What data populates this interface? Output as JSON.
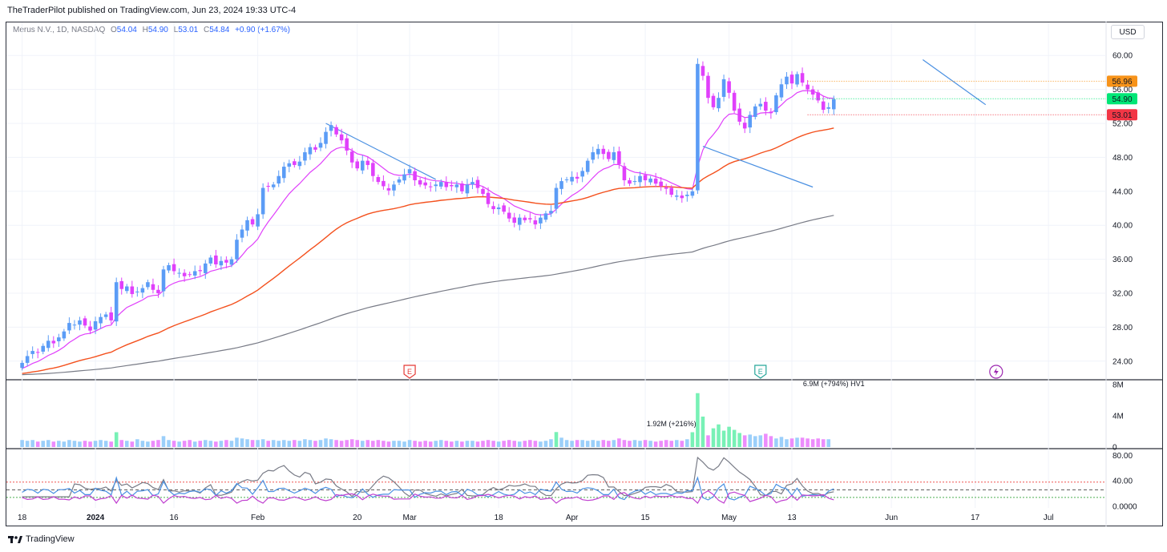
{
  "header": {
    "published": "TheTraderPilot published on TradingView.com, Jun 23, 2024 19:33 UTC-4"
  },
  "legend": {
    "symbol": "Merus N.V., 1D, NASDAQ",
    "o_label": "O",
    "o_value": "54.04",
    "h_label": "H",
    "h_value": "54.90",
    "l_label": "L",
    "l_value": "53.01",
    "c_label": "C",
    "c_value": "54.84",
    "change": "+0.90 (+1.67%)"
  },
  "currency": "USD",
  "footer": {
    "brand": "TradingView"
  },
  "colors": {
    "up": "#5b9cf6",
    "down": "#e040fb",
    "ema_short": "#e040fb",
    "ema_mid": "#f4511e",
    "ema_long": "#787b86",
    "trendline": "#4a90e2"
  },
  "chart_data": {
    "type": "candlestick",
    "price_axis": {
      "ticks": [
        "60.00",
        "56.00",
        "52.00",
        "48.00",
        "44.00",
        "40.00",
        "36.00",
        "32.00",
        "28.00",
        "24.00"
      ],
      "ylim": [
        22.0,
        62.0
      ]
    },
    "price_labels": [
      {
        "text": "56.96",
        "value": 56.96,
        "color": "#f7931a"
      },
      {
        "text": "54.90",
        "value": 54.9,
        "color": "#00e676"
      },
      {
        "text": "53.01",
        "value": 53.01,
        "color": "#f23645"
      }
    ],
    "x_ticks": [
      {
        "label": "18",
        "day": 0
      },
      {
        "label": "2024",
        "day": 14,
        "bold": true
      },
      {
        "label": "16",
        "day": 29
      },
      {
        "label": "Feb",
        "day": 45
      },
      {
        "label": "20",
        "day": 64
      },
      {
        "label": "Mar",
        "day": 74
      },
      {
        "label": "18",
        "day": 91
      },
      {
        "label": "Apr",
        "day": 105
      },
      {
        "label": "15",
        "day": 119
      },
      {
        "label": "May",
        "day": 135
      },
      {
        "label": "13",
        "day": 147
      },
      {
        "label": "Jun",
        "day": 166
      },
      {
        "label": "17",
        "day": 182
      },
      {
        "label": "Jul",
        "day": 196
      }
    ],
    "x_range": [
      -3,
      207
    ],
    "closes": [
      23.8,
      24.6,
      25.2,
      25.0,
      25.8,
      26.4,
      26.1,
      26.8,
      27.5,
      28.5,
      28.3,
      28.8,
      28.2,
      27.6,
      28.7,
      29.2,
      29.5,
      28.8,
      33.3,
      32.5,
      32.8,
      31.9,
      32.2,
      32.6,
      33.3,
      32.4,
      32.0,
      34.8,
      35.3,
      34.6,
      34.4,
      34.0,
      34.2,
      34.6,
      34.6,
      35.5,
      36.2,
      35.4,
      35.8,
      35.6,
      36.0,
      38.3,
      39.5,
      40.6,
      40.1,
      41.3,
      44.4,
      44.6,
      44.8,
      45.8,
      46.9,
      47.3,
      47.1,
      47.5,
      48.6,
      49.2,
      48.9,
      49.7,
      51.0,
      51.8,
      50.7,
      50.0,
      48.8,
      47.4,
      46.7,
      47.6,
      47.1,
      45.8,
      45.1,
      44.6,
      44.1,
      44.8,
      45.4,
      46.0,
      46.6,
      45.3,
      44.8,
      44.7,
      44.5,
      44.8,
      45.1,
      44.5,
      44.6,
      44.8,
      44.0,
      44.8,
      45.1,
      44.4,
      43.7,
      42.5,
      41.9,
      42.1,
      41.6,
      40.8,
      40.3,
      40.9,
      40.6,
      40.7,
      40.1,
      40.9,
      41.4,
      41.7,
      44.4,
      45.2,
      45.4,
      45.7,
      45.5,
      46.4,
      47.6,
      48.6,
      49.0,
      48.4,
      47.8,
      48.6,
      47.2,
      45.3,
      44.9,
      45.2,
      45.8,
      45.3,
      45.5,
      44.9,
      44.6,
      44.3,
      43.6,
      43.5,
      43.2,
      43.6,
      44.0,
      59.0,
      57.6,
      55.0,
      53.9,
      55.0,
      57.2,
      55.6,
      53.5,
      52.2,
      51.4,
      53.0,
      54.0,
      54.3,
      53.5,
      53.2,
      55.3,
      56.6,
      57.5,
      56.7,
      57.8,
      56.8,
      56.0,
      55.4,
      54.7,
      53.6,
      53.9,
      54.84
    ],
    "volume_axis": {
      "ticks": [
        "8M",
        "4M",
        "0"
      ],
      "ylim": [
        0,
        8
      ]
    },
    "volume_annotations": [
      {
        "text": "1.92M (+216%)",
        "day": 124
      },
      {
        "text": "6.9M (+794%) HV1",
        "day": 155
      }
    ],
    "volume": [
      0.9,
      0.8,
      0.9,
      0.7,
      0.8,
      0.9,
      0.7,
      0.8,
      0.7,
      0.9,
      0.8,
      0.7,
      0.8,
      0.7,
      0.8,
      0.9,
      0.8,
      0.7,
      1.9,
      0.9,
      0.8,
      0.7,
      1.0,
      0.8,
      0.7,
      0.8,
      0.9,
      1.4,
      0.9,
      0.8,
      0.7,
      0.8,
      0.9,
      0.7,
      0.8,
      0.9,
      0.8,
      0.7,
      0.8,
      0.9,
      0.8,
      1.2,
      1.1,
      1.0,
      0.9,
      0.9,
      1.0,
      0.8,
      0.9,
      0.8,
      0.9,
      0.8,
      0.9,
      0.8,
      1.0,
      0.9,
      0.8,
      0.9,
      1.1,
      1.0,
      0.9,
      0.8,
      0.9,
      1.0,
      0.9,
      0.8,
      0.9,
      0.8,
      0.9,
      0.8,
      0.7,
      0.8,
      0.8,
      0.7,
      0.9,
      0.8,
      0.7,
      0.8,
      0.7,
      0.8,
      0.9,
      0.8,
      0.7,
      0.8,
      0.7,
      0.8,
      0.8,
      0.7,
      0.8,
      0.9,
      0.8,
      0.7,
      0.8,
      0.9,
      0.8,
      0.7,
      0.8,
      0.9,
      0.8,
      0.7,
      0.8,
      1.0,
      1.92,
      1.2,
      0.9,
      0.8,
      0.9,
      0.9,
      0.8,
      0.9,
      0.8,
      0.9,
      0.8,
      0.9,
      1.1,
      0.9,
      0.8,
      0.9,
      0.8,
      0.9,
      0.8,
      0.7,
      0.8,
      0.9,
      0.8,
      0.9,
      0.8,
      1.0,
      1.9,
      6.9,
      3.9,
      1.5,
      2.4,
      2.9,
      2.1,
      2.6,
      2.2,
      1.8,
      1.5,
      1.6,
      1.4,
      1.5,
      1.7,
      1.4,
      1.1,
      1.3,
      1.0,
      1.1,
      1.2,
      1.2,
      1.1,
      1.0,
      1.1,
      1.0,
      1.0
    ],
    "osc_axis": {
      "ticks": [
        "80.00",
        "40.00",
        "0.0000"
      ],
      "ylim": [
        0,
        88
      ]
    },
    "osc_levels": {
      "upper": 38,
      "mid": 26,
      "lower": 14
    }
  }
}
